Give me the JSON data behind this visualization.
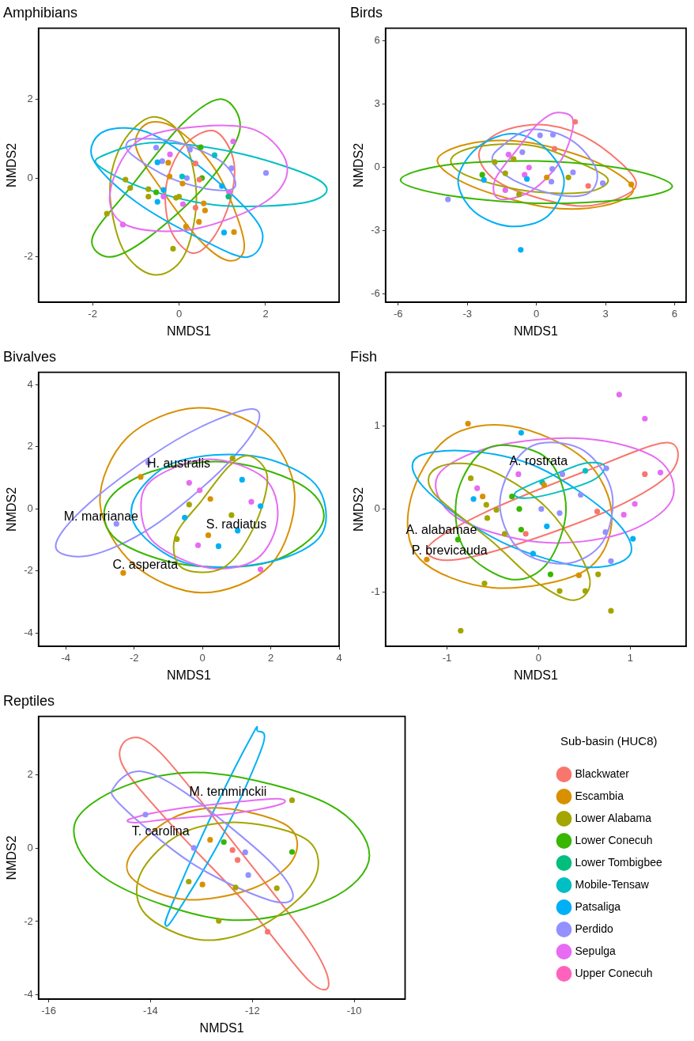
{
  "chart_data": [
    {
      "type": "scatter",
      "title": "Amphibians",
      "xlabel": "NMDS1",
      "ylabel": "NMDS2",
      "xlim": [
        -3.25,
        3.7
      ],
      "ylim": [
        -3.15,
        3.8
      ],
      "xticks": [
        -2,
        0,
        2
      ],
      "yticks": [
        -2,
        0,
        2
      ],
      "marker": "circle",
      "series": [
        {
          "type": "scatter",
          "color": "#F8766D",
          "x": [
            0.38,
            0.47,
            0.38
          ],
          "values": [
            0.37,
            -0.04,
            -0.75
          ]
        },
        {
          "type": "scatter",
          "color": "#D89000",
          "x": [
            -0.25,
            -0.22,
            0.08,
            0.57,
            0.6,
            0.46,
            0.16,
            1.27
          ],
          "values": [
            0.39,
            0.04,
            -0.14,
            -0.64,
            -0.82,
            -1.11,
            -1.23,
            -1.37
          ]
        },
        {
          "type": "scatter",
          "color": "#A3A500",
          "x": [
            -1.24,
            -1.13,
            -0.71,
            -0.71,
            -0.07,
            0,
            -1.67,
            -0.14
          ],
          "values": [
            -0.04,
            -0.25,
            -0.28,
            -0.47,
            -0.5,
            -0.47,
            -0.9,
            -1.79
          ]
        },
        {
          "type": "scatter",
          "color": "#39B600",
          "x": [
            0.5,
            0.53,
            -0.53
          ],
          "values": [
            0.78,
            0,
            -0.36
          ]
        },
        {
          "type": "scatter",
          "color": "#00BF7D",
          "x": [
            1.14
          ],
          "values": [
            -0.47
          ]
        },
        {
          "type": "scatter",
          "color": "#00BFC4",
          "x": [
            0.82,
            0.07
          ],
          "values": [
            0.58,
            0.04
          ]
        },
        {
          "type": "scatter",
          "color": "#00B0F6",
          "x": [
            -0.5,
            -0.36,
            -0.5,
            0.99,
            1.04
          ],
          "values": [
            0.4,
            -0.3,
            -0.6,
            -0.2,
            -1.38
          ]
        },
        {
          "type": "scatter",
          "color": "#9590FF",
          "x": [
            -0.53,
            0.25,
            -0.39,
            0.18,
            1.21,
            2.01
          ],
          "values": [
            0.77,
            0.72,
            0.43,
            0,
            0.25,
            0.13
          ]
        },
        {
          "type": "scatter",
          "color": "#E76BF3",
          "x": [
            -0.21,
            -0.36,
            0.09,
            1.16,
            -1.3,
            1.25
          ],
          "values": [
            0.6,
            -0.47,
            -0.66,
            -0.37,
            -1.18,
            0.93
          ]
        }
      ]
    },
    {
      "type": "scatter",
      "title": "Birds",
      "xlabel": "NMDS1",
      "ylabel": "NMDS2",
      "xlim": [
        -6.55,
        6.5
      ],
      "ylim": [
        -6.4,
        6.6
      ],
      "xticks": [
        -6,
        -3,
        0,
        3,
        6
      ],
      "yticks": [
        -6,
        -3,
        0,
        3,
        6
      ],
      "marker": "circle",
      "series": [
        {
          "type": "scatter",
          "color": "#F8766D",
          "x": [
            1.68,
            0.79,
            2.25
          ],
          "values": [
            2.16,
            0.88,
            -0.88
          ]
        },
        {
          "type": "scatter",
          "color": "#D89000",
          "x": [
            4.12,
            0.45
          ],
          "values": [
            -0.81,
            -0.48
          ]
        },
        {
          "type": "scatter",
          "color": "#A3A500",
          "x": [
            -1.35,
            -0.99,
            -1.81,
            1.39,
            -0.75
          ],
          "values": [
            -0.28,
            0.39,
            0.25,
            -0.48,
            -1.28
          ]
        },
        {
          "type": "scatter",
          "color": "#39B600",
          "x": [
            -2.35
          ],
          "values": [
            -0.35
          ]
        },
        {
          "type": "scatter",
          "color": "#00B0F6",
          "x": [
            -2.28,
            -0.41,
            -0.68
          ],
          "values": [
            -0.59,
            -0.55,
            -3.91
          ]
        },
        {
          "type": "scatter",
          "color": "#9590FF",
          "x": [
            0.16,
            0.72,
            -0.61,
            0.69,
            0.65,
            1.59,
            2.88,
            -3.84
          ],
          "values": [
            1.52,
            1.55,
            0.72,
            -0.08,
            -0.68,
            -0.24,
            -0.75,
            -1.52
          ]
        },
        {
          "type": "scatter",
          "color": "#E76BF3",
          "x": [
            -1.21,
            -0.32,
            -0.51,
            -1.35
          ],
          "values": [
            0.61,
            -0.01,
            -0.35,
            -1.08
          ]
        }
      ]
    },
    {
      "type": "scatter",
      "title": "Bivalves",
      "xlabel": "NMDS1",
      "ylabel": "NMDS2",
      "xlim": [
        -4.8,
        4.0
      ],
      "ylim": [
        -4.43,
        4.4
      ],
      "xticks": [
        -4,
        -2,
        0,
        2,
        4
      ],
      "yticks": [
        -4,
        -2,
        0,
        2,
        4
      ],
      "marker": "circle",
      "annotations": [
        "H. australis",
        "M. marrianae",
        "S. radiatus",
        "C. asperata"
      ],
      "series": [
        {
          "type": "scatter",
          "color": "#D89000",
          "x": [
            -1.81,
            0.23,
            0.17,
            -2.32
          ],
          "values": [
            1.03,
            0.32,
            -0.85,
            -2.06
          ]
        },
        {
          "type": "scatter",
          "color": "#A3A500",
          "x": [
            0.88,
            -0.39,
            0.85,
            -0.75
          ],
          "values": [
            1.63,
            0.14,
            -0.2,
            -0.97
          ]
        },
        {
          "type": "scatter",
          "color": "#00B0F6",
          "x": [
            1.16,
            1.7,
            -0.52,
            1.03,
            0.47
          ],
          "values": [
            0.94,
            0.09,
            -0.28,
            -0.7,
            -1.2
          ]
        },
        {
          "type": "scatter",
          "color": "#9590FF",
          "x": [
            -1.59,
            -2.52
          ],
          "values": [
            1.49,
            -0.48
          ]
        },
        {
          "type": "scatter",
          "color": "#E76BF3",
          "x": [
            -0.39,
            -0.08,
            1.43,
            0.19,
            -0.13,
            1.7
          ],
          "values": [
            0.84,
            0.6,
            0.23,
            null,
            -1.17,
            -1.95
          ]
        }
      ]
    },
    {
      "type": "scatter",
      "title": "Fish",
      "xlabel": "NMDS1",
      "ylabel": "NMDS2",
      "xlim": [
        -1.67,
        1.61
      ],
      "ylim": [
        -1.66,
        1.65
      ],
      "xticks": [
        -1,
        0,
        1
      ],
      "yticks": [
        -1,
        0,
        1
      ],
      "marker": "circle",
      "annotations": [
        "A. rostrata",
        "A. alabamae",
        "P. brevicauda"
      ],
      "series": [
        {
          "type": "scatter",
          "color": "#F8766D",
          "x": [
            1.16,
            0.64,
            -0.14
          ],
          "values": [
            0.42,
            -0.03,
            -0.3
          ]
        },
        {
          "type": "scatter",
          "color": "#D89000",
          "x": [
            -0.77,
            -1.22,
            -0.61,
            0.06,
            0.44
          ],
          "values": [
            1.03,
            -0.61,
            0.15,
            0.29,
            -0.8
          ]
        },
        {
          "type": "scatter",
          "color": "#A3A500",
          "x": [
            -0.85,
            0.79,
            0.23,
            0.51,
            -0.74,
            -0.57,
            -0.46,
            -0.56,
            -0.37,
            0.65,
            -0.59
          ],
          "values": [
            -1.47,
            -1.23,
            -0.99,
            -0.99,
            0.37,
            0.05,
            -0.01,
            -0.11,
            -0.3,
            -0.79,
            -0.9
          ]
        },
        {
          "type": "scatter",
          "color": "#39B600",
          "x": [
            -0.29,
            -0.21,
            -0.88,
            0.13,
            -0.19
          ],
          "values": [
            0.15,
            0,
            -0.37,
            -0.79,
            -0.25
          ]
        },
        {
          "type": "scatter",
          "color": "#00BFC4",
          "x": [
            0.51,
            0.04
          ],
          "values": [
            0.46,
            0.32
          ]
        },
        {
          "type": "scatter",
          "color": "#00B0F6",
          "x": [
            -0.19,
            -0.71,
            0.09,
            -0.06,
            1.03
          ],
          "values": [
            0.92,
            0.12,
            -0.21,
            -0.54,
            -0.36
          ]
        },
        {
          "type": "scatter",
          "color": "#9590FF",
          "x": [
            0.03,
            0.23,
            0.46,
            0.73,
            0.79,
            0.26,
            0.74
          ],
          "values": [
            0,
            -0.05,
            0.17,
            -0.28,
            -0.63,
            0.42,
            0.49
          ]
        },
        {
          "type": "scatter",
          "color": "#E76BF3",
          "x": [
            0.88,
            1.16,
            1.33,
            1.05,
            0.93,
            -0.22,
            -0.67
          ],
          "values": [
            1.38,
            1.09,
            0.44,
            0.06,
            -0.07,
            0.42,
            0.25
          ]
        }
      ]
    },
    {
      "type": "scatter",
      "title": "Reptiles",
      "xlabel": "NMDS1",
      "ylabel": "NMDS2",
      "xlim": [
        -16.2,
        -9.0
      ],
      "ylim": [
        -4.12,
        3.6
      ],
      "xticks": [
        -16,
        -14,
        -12,
        -10
      ],
      "yticks": [
        -4,
        -2,
        0,
        2
      ],
      "marker": "circle",
      "legend": "right",
      "legend_title": "Sub-basin (HUC8)",
      "annotations": [
        "M. temminckii",
        "T. carolina"
      ],
      "series": [
        {
          "type": "scatter",
          "name": "Blackwater",
          "color": "#F8766D",
          "x": [
            -12.39,
            -12.29,
            -11.7
          ],
          "values": [
            -0.05,
            -0.32,
            -2.28
          ]
        },
        {
          "type": "scatter",
          "name": "Escambia",
          "color": "#D89000",
          "x": [
            -12.83,
            -12.98
          ],
          "values": [
            0.23,
            -0.99
          ]
        },
        {
          "type": "scatter",
          "name": "Lower Alabama",
          "color": "#A3A500",
          "x": [
            -11.22,
            -13.25,
            -12.33,
            -11.52,
            -12.66
          ],
          "values": [
            1.31,
            -0.91,
            -1.07,
            -1.09,
            -1.98
          ]
        },
        {
          "type": "scatter",
          "name": "Lower Conecuh",
          "color": "#39B600",
          "x": [
            -12.56,
            -11.22
          ],
          "values": [
            0.17,
            -0.1
          ]
        },
        {
          "type": "scatter",
          "name": "Lower Tombigbee",
          "color": "#00BF7D"
        },
        {
          "type": "scatter",
          "name": "Mobile-Tensaw",
          "color": "#00BFC4"
        },
        {
          "type": "scatter",
          "name": "Patsaliga",
          "color": "#00B0F6"
        },
        {
          "type": "scatter",
          "name": "Perdido",
          "color": "#9590FF",
          "x": [
            -14.1,
            -13.15,
            -12.14,
            -12.08
          ],
          "values": [
            0.92,
            0.01,
            -0.11,
            -0.73
          ]
        },
        {
          "type": "scatter",
          "name": "Sepulga",
          "color": "#E76BF3"
        },
        {
          "type": "scatter",
          "name": "Upper Conecuh",
          "color": "#FF62BC"
        }
      ]
    }
  ]
}
